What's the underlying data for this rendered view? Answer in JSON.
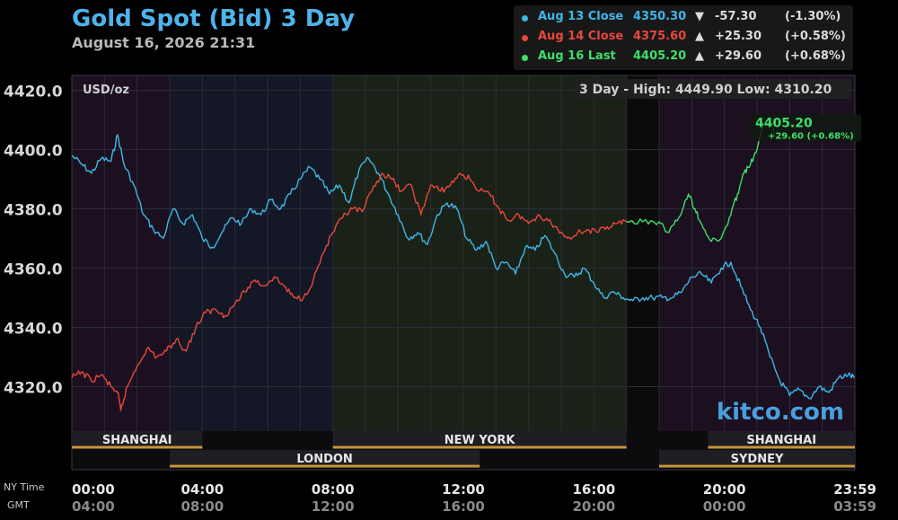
{
  "header": {
    "title": "Gold Spot (Bid) 3 Day",
    "timestamp": "August 16, 2026 21:31"
  },
  "legend": [
    {
      "label": "Aug 13 Close",
      "value": "4350.30",
      "arrow": "▼",
      "change": "-57.30",
      "pct": "(-1.30%)",
      "color": "#3fb6e6"
    },
    {
      "label": "Aug 14 Close",
      "value": "4375.60",
      "arrow": "▲",
      "change": "+25.30",
      "pct": "(+0.58%)",
      "color": "#e8473b"
    },
    {
      "label": "Aug 16 Last",
      "value": "4405.20",
      "arrow": "▲",
      "change": "+29.60",
      "pct": "(+0.68%)",
      "color": "#3ede6b"
    }
  ],
  "chart_data": {
    "type": "line",
    "unit_label": "USD/oz",
    "high_low_label": "3 Day - High: 4449.90   Low: 4310.20",
    "ylim": [
      4305,
      4425
    ],
    "yticks": [
      "4420.0",
      "4400.0",
      "4380.0",
      "4360.0",
      "4340.0",
      "4320.0"
    ],
    "ytick_values": [
      4420,
      4400,
      4380,
      4360,
      4340,
      4320
    ],
    "xlim": [
      0,
      24
    ],
    "x_row_labels": [
      "NY Time",
      "GMT"
    ],
    "xticks_ny": [
      "00:00",
      "04:00",
      "08:00",
      "12:00",
      "16:00",
      "20:00",
      "23:59"
    ],
    "xticks_gmt": [
      "04:00",
      "08:00",
      "12:00",
      "16:00",
      "20:00",
      "00:00",
      "03:59"
    ],
    "xtick_hours": [
      0,
      4,
      8,
      12,
      16,
      20,
      24
    ],
    "last_label": "4405.20",
    "last_change_label": "+29.60 (+0.68%)",
    "watermark": "kitco.com",
    "sessions": [
      {
        "name": "SHANGHAI",
        "start": 0,
        "end": 4,
        "row": 1
      },
      {
        "name": "NEW YORK",
        "start": 8,
        "end": 17,
        "row": 1
      },
      {
        "name": "SHANGHAI",
        "start": 19.5,
        "end": 24,
        "row": 1
      },
      {
        "name": "LONDON",
        "start": 3,
        "end": 12.5,
        "row": 2
      },
      {
        "name": "SYDNEY",
        "start": 18,
        "end": 24,
        "row": 2
      }
    ],
    "series": [
      {
        "color": "#3fb6e6",
        "x": [
          0,
          0.3,
          0.6,
          0.9,
          1.2,
          1.4,
          1.6,
          1.9,
          2.2,
          2.5,
          2.8,
          3.1,
          3.4,
          3.7,
          4.0,
          4.3,
          4.6,
          4.9,
          5.2,
          5.5,
          5.8,
          6.1,
          6.4,
          6.7,
          7.0,
          7.3,
          7.6,
          7.9,
          8.2,
          8.5,
          8.8,
          9.1,
          9.4,
          9.7,
          10.0,
          10.3,
          10.6,
          10.9,
          11.2,
          11.5,
          11.8,
          12.1,
          12.4,
          12.7,
          13.0,
          13.3,
          13.6,
          13.9,
          14.2,
          14.5,
          14.8,
          15.1,
          15.4,
          15.7,
          16.0,
          16.3,
          16.6,
          16.9,
          17.2,
          17.5,
          17.8,
          18.1,
          18.4,
          18.7,
          19.0,
          19.3,
          19.6,
          19.9,
          20.2,
          20.5,
          20.8,
          21.1,
          21.4,
          21.7,
          22.0,
          22.3,
          22.6,
          22.9,
          23.2,
          23.5,
          23.8,
          23.99
        ],
        "y": [
          4398,
          4395,
          4392,
          4397,
          4396,
          4405,
          4395,
          4388,
          4378,
          4373,
          4370,
          4380,
          4375,
          4378,
          4370,
          4367,
          4372,
          4377,
          4375,
          4380,
          4378,
          4383,
          4380,
          4385,
          4390,
          4394,
          4390,
          4385,
          4388,
          4382,
          4393,
          4397,
          4392,
          4385,
          4378,
          4370,
          4372,
          4368,
          4378,
          4382,
          4380,
          4370,
          4366,
          4369,
          4360,
          4362,
          4358,
          4367,
          4366,
          4371,
          4365,
          4358,
          4357,
          4360,
          4355,
          4350,
          4352,
          4350,
          4349,
          4350,
          4350,
          4350,
          4350,
          4352,
          4357,
          4358,
          4355,
          4360,
          4362,
          4354,
          4346,
          4340,
          4330,
          4322,
          4317,
          4319,
          4316,
          4320,
          4318,
          4323,
          4324,
          4323
        ]
      },
      {
        "color": "#e8473b",
        "x": [
          0,
          0.3,
          0.6,
          0.9,
          1.2,
          1.4,
          1.5,
          1.7,
          2.0,
          2.3,
          2.6,
          2.9,
          3.2,
          3.5,
          3.8,
          4.1,
          4.4,
          4.7,
          5.0,
          5.3,
          5.6,
          5.9,
          6.2,
          6.5,
          6.8,
          7.1,
          7.4,
          7.7,
          8.0,
          8.3,
          8.6,
          8.9,
          9.2,
          9.5,
          9.8,
          10.1,
          10.4,
          10.7,
          11.0,
          11.3,
          11.6,
          11.9,
          12.2,
          12.5,
          12.8,
          13.1,
          13.4,
          13.7,
          14.0,
          14.3,
          14.6,
          14.9,
          15.2,
          15.5,
          15.8,
          16.1,
          16.4,
          16.7,
          17.0
        ],
        "y": [
          4323,
          4325,
          4322,
          4324,
          4320,
          4318,
          4312,
          4320,
          4327,
          4333,
          4330,
          4332,
          4336,
          4332,
          4340,
          4345,
          4346,
          4344,
          4348,
          4352,
          4356,
          4354,
          4357,
          4354,
          4350,
          4350,
          4356,
          4365,
          4372,
          4377,
          4380,
          4379,
          4386,
          4392,
          4390,
          4386,
          4388,
          4378,
          4388,
          4386,
          4388,
          4392,
          4390,
          4386,
          4385,
          4380,
          4376,
          4378,
          4375,
          4378,
          4376,
          4373,
          4370,
          4372,
          4373,
          4372,
          4374,
          4375,
          4375.6
        ]
      },
      {
        "color": "#3ede6b",
        "x": [
          17.0,
          17.5,
          18.0,
          18.3,
          18.6,
          18.9,
          19.1,
          19.3,
          19.6,
          19.9,
          20.2,
          20.4,
          20.6,
          20.8,
          21.0,
          21.2,
          21.4,
          21.55
        ],
        "y": [
          4375.6,
          4375.6,
          4375.6,
          4372,
          4377,
          4385,
          4380,
          4375,
          4369,
          4370,
          4378,
          4385,
          4392,
          4395,
          4400,
          4408,
          4410,
          4405.2
        ]
      }
    ]
  }
}
